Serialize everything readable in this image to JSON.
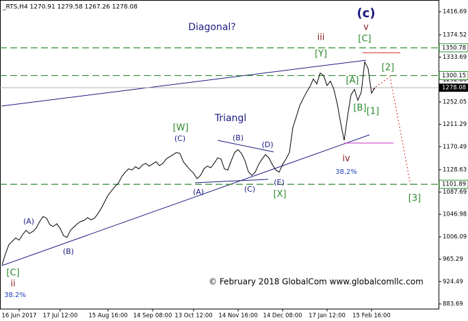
{
  "chart_data": {
    "type": "line",
    "title": "_RTS,H4 1270.91 1279.58 1267.26 1278.08",
    "categories": [
      null,
      null,
      null,
      null,
      null,
      "16 Jun 2017",
      null,
      null,
      null,
      null,
      null,
      null,
      null,
      null,
      null,
      null,
      null,
      "17 Jul 12:00",
      null,
      null,
      null,
      null,
      null,
      null,
      null,
      null,
      null,
      null,
      null,
      null,
      null,
      "15 Aug 16:00",
      null,
      null,
      null,
      null,
      null,
      null,
      null,
      null,
      null,
      null,
      null,
      null,
      "14 Sep 08:00",
      null,
      null,
      null,
      null,
      null,
      null,
      null,
      null,
      null,
      null,
      null,
      "13 Oct 12:00",
      null,
      null,
      null,
      null,
      null,
      null,
      null,
      null,
      null,
      null,
      null,
      null,
      "14 Nov 16:00",
      null,
      null,
      null,
      null,
      null,
      null,
      null,
      null,
      null,
      null,
      null,
      null,
      "14 Dec 08:00",
      null,
      null,
      null,
      null,
      null,
      null,
      null,
      null,
      null,
      null,
      null,
      null,
      "17 Jan 12:00",
      null,
      null,
      null,
      null,
      null,
      null,
      null,
      null,
      null,
      null,
      null,
      null,
      "15 Feb 16:00",
      null
    ],
    "series": [
      {
        "color": "#000000",
        "values": [
          955,
          975,
          992,
          998,
          1004,
          1000,
          1010,
          1018,
          1012,
          1016,
          1022,
          1034,
          1043,
          1040,
          1028,
          1025,
          1030,
          1021,
          1008,
          1005,
          1018,
          1024,
          1030,
          1034,
          1036,
          1041,
          1037,
          1040,
          1048,
          1058,
          1070,
          1082,
          1090,
          1098,
          1104,
          1116,
          1124,
          1130,
          1128,
          1134,
          1130,
          1137,
          1140,
          1135,
          1139,
          1143,
          1136,
          1140,
          1148,
          1152,
          1156,
          1160,
          1158,
          1143,
          1135,
          1128,
          1122,
          1112,
          1118,
          1130,
          1135,
          1132,
          1140,
          1150,
          1148,
          1130,
          1128,
          1145,
          1160,
          1165,
          1158,
          1145,
          1125,
          1118,
          1124,
          1138,
          1148,
          1156,
          1150,
          1138,
          1128,
          1124,
          1138,
          1148,
          1160,
          1205,
          1225,
          1245,
          1258,
          1270,
          1280,
          1294,
          1285,
          1305,
          1300,
          1282,
          1290,
          1275,
          1248,
          1213,
          1182,
          1226,
          1265,
          1275,
          1255,
          1270,
          1325,
          1313,
          1268,
          1278
        ]
      }
    ],
    "ylim": [
      875,
      1438
    ],
    "yticks": [
      1416.69,
      1374.52,
      1333.69,
      1292.86,
      1252.05,
      1211.29,
      1170.49,
      1128.63,
      1087.69,
      1046.98,
      1006.09,
      965.29,
      924.49,
      883.69
    ],
    "levels": [
      1350.78,
      1300.15,
      1101.89
    ],
    "level_color": "#2e8b2e",
    "price_line": 1278.08,
    "annotations": [
      {
        "text": "(c)",
        "color": "#1a1a80"
      },
      {
        "text": "v",
        "color": "#8b1a1a"
      },
      {
        "text": "[C]",
        "color": "#2a8a2a"
      },
      {
        "text": "iii",
        "color": "#8b1a1a"
      },
      {
        "text": "[Y]",
        "color": "#2a8a2a"
      },
      {
        "text": "[A]",
        "color": "#2a8a2a"
      },
      {
        "text": "[2]",
        "color": "#2a8a2a"
      },
      {
        "text": "[B]",
        "color": "#2a8a2a"
      },
      {
        "text": "[1]",
        "color": "#2a8a2a"
      },
      {
        "text": "iv",
        "color": "#8b1a1a"
      },
      {
        "text": "38.2%",
        "color": "#2040c0"
      },
      {
        "text": "[3]",
        "color": "#2a8a2a"
      },
      {
        "text": "Diagonal?",
        "color": "#1a1a80"
      },
      {
        "text": "Triangl",
        "color": "#1a1a80"
      },
      {
        "text": "[W]",
        "color": "#2a8a2a"
      },
      {
        "text": "(C)",
        "color": "#1a1a80"
      },
      {
        "text": "(B)",
        "color": "#1a1a80"
      },
      {
        "text": "(D)",
        "color": "#1a1a80"
      },
      {
        "text": "(E)",
        "color": "#1a1a80"
      },
      {
        "text": "[X]",
        "color": "#2a8a2a"
      },
      {
        "text": "(A)",
        "color": "#1a1a80"
      },
      {
        "text": "(C)",
        "color": "#1a1a80"
      },
      {
        "text": "(A)",
        "color": "#1a1a80"
      },
      {
        "text": "(B)",
        "color": "#1a1a80"
      },
      {
        "text": "[C]",
        "color": "#2a8a2a"
      },
      {
        "text": "ii",
        "color": "#8b1a1a"
      },
      {
        "text": "38.2%",
        "color": "#2040c0"
      },
      {
        "text": "© February 2018 GlobalCom www.globalcomllc.com",
        "color": "#000000"
      }
    ]
  }
}
